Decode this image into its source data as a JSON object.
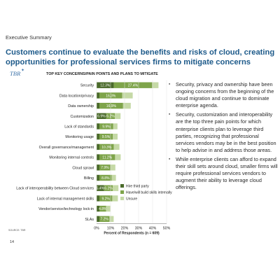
{
  "header": {
    "section_label": "Executive Summary",
    "headline": "Customers continue to evaluate the benefits and risks of cloud, creating opportunities for professional services firms to mitigate concerns"
  },
  "logo": {
    "text": "TBR"
  },
  "bullets": [
    "Security, privacy and ownership have been ongoing concerns from the beginning of the cloud migration and continue to dominate enterprise agenda.",
    "Security, customization and interoperability are the top three pain points for which enterprise clients plan to leverage third parties, recognizing that professional services vendors may be in the best position to help advise in and address those areas.",
    "While enterprise clients can afford to expand their skill sets around cloud, smaller firms will require professional services vendors to augment their ability to leverage cloud offerings."
  ],
  "footer": {
    "source": "SOURCE: TBR",
    "page_number": "14"
  },
  "colors": {
    "headline": "#1d5a8a",
    "hire_third_party": "#4a6a2a",
    "build_internally": "#7ea44a",
    "unsure": "#c5d9a6"
  },
  "chart_data": {
    "type": "bar",
    "orientation": "horizontal",
    "stacked": true,
    "title": "TOP KEY CONCERNS/PAIN POINTS AND PLANS TO MITIGATE",
    "xlabel": "Percent of Respondents (n = 609)",
    "ylabel": "",
    "xlim": [
      0,
      50
    ],
    "xticks": [
      "0%",
      "10%",
      "20%",
      "30%",
      "40%",
      "50%"
    ],
    "legend_position": "bottom-right",
    "categories": [
      "Security",
      "Data location/privacy",
      "Data ownership",
      "Customization",
      "Lack of standards",
      "Monitoring usage",
      "Overall governance/management",
      "Monitoring internal controls",
      "Cloud sprawl",
      "Billing",
      "Lack of interoperability between Cloud services",
      "Lack of internal management skills",
      "Vendor/service/technology lock-in",
      "SLAs"
    ],
    "series": [
      {
        "name": "Hire third party",
        "values": [
          12.3,
          2.0,
          2.0,
          6.9,
          2.0,
          2.0,
          2.0,
          2.0,
          2.0,
          2.0,
          5.4,
          2.0,
          2.0,
          2.0
        ],
        "labels": [
          "12.3%",
          "",
          "",
          "6.9%",
          "",
          "",
          "",
          "",
          "",
          "",
          "5.4%",
          "",
          "",
          ""
        ]
      },
      {
        "name": "Have/will build skills internally",
        "values": [
          27.4,
          16.3,
          16.9,
          6.2,
          9.9,
          9.5,
          10.3,
          11.2,
          7.9,
          8.8,
          6.2,
          9.2,
          4.8,
          7.2
        ],
        "labels": [
          "27.4%",
          "16.3%",
          "16.9%",
          "6.2%",
          "9.9%",
          "9.5%",
          "10.3%",
          "11.2%",
          "7.9%",
          "8.8%",
          "6.2%",
          "9.2%",
          "4.8%",
          "7.2%"
        ]
      },
      {
        "name": "Unsure",
        "values": [
          4.5,
          7.5,
          5.5,
          4.0,
          3.0,
          3.5,
          4.0,
          4.0,
          3.5,
          3.0,
          4.0,
          4.0,
          3.0,
          3.0
        ],
        "labels": [
          "",
          "",
          "",
          "",
          "",
          "",
          "",
          "",
          "",
          "",
          "",
          "",
          "",
          ""
        ]
      }
    ]
  }
}
